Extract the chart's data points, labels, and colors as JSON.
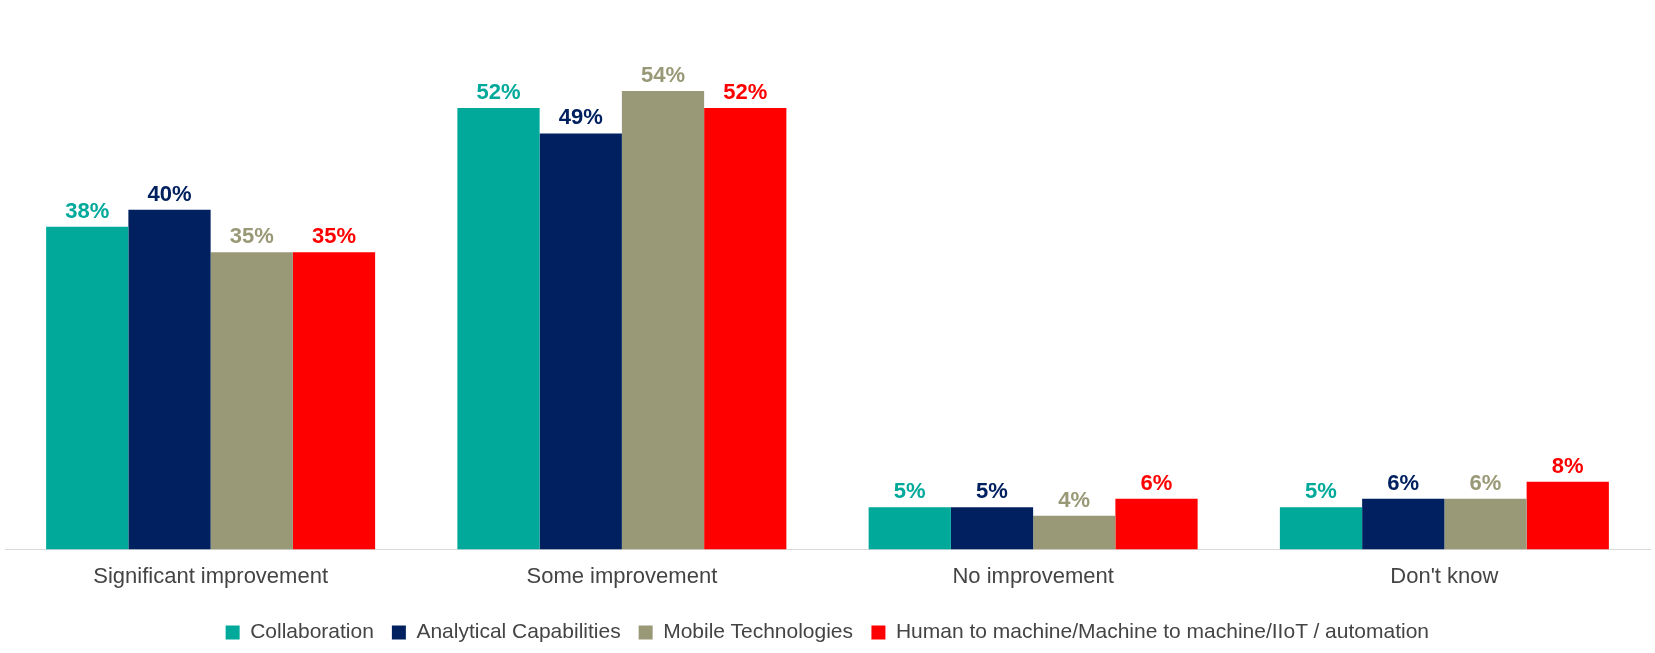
{
  "chart_data": {
    "type": "bar",
    "categories": [
      "Significant improvement",
      "Some improvement",
      "No improvement",
      "Don't know"
    ],
    "series": [
      {
        "name": "Collaboration",
        "color": "#00a99a",
        "values": [
          38,
          52,
          5,
          5
        ],
        "value_labels": [
          "38%",
          "52%",
          "5%",
          "5%"
        ]
      },
      {
        "name": "Analytical Capabilities",
        "color": "#002060",
        "values": [
          40,
          49,
          5,
          6
        ],
        "value_labels": [
          "40%",
          "49%",
          "5%",
          "6%"
        ]
      },
      {
        "name": "Mobile Technologies",
        "color": "#999977",
        "values": [
          35,
          54,
          4,
          6
        ],
        "value_labels": [
          "35%",
          "54%",
          "4%",
          "6%"
        ]
      },
      {
        "name": "Human to machine/Machine to machine/IIoT / automation",
        "color": "#ff0000",
        "values": [
          35,
          52,
          6,
          8
        ],
        "value_labels": [
          "35%",
          "52%",
          "6%",
          "8%"
        ]
      }
    ],
    "legend": "bottom",
    "tick_labels": "x"
  }
}
